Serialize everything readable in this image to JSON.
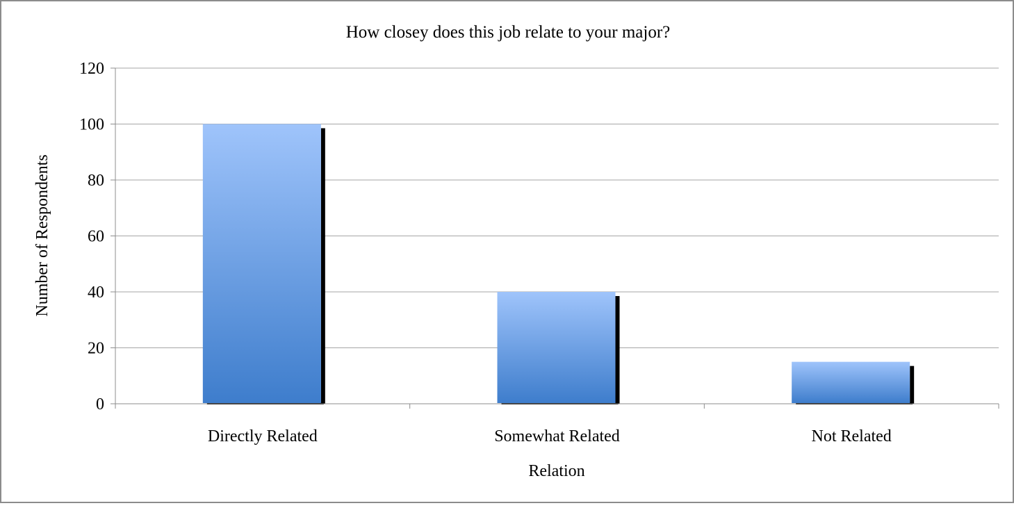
{
  "chart_data": {
    "type": "bar",
    "title": "How closey does this job relate to your major?",
    "xlabel": "Relation",
    "ylabel": "Number of Respondents",
    "categories": [
      "Directly Related",
      "Somewhat Related",
      "Not Related"
    ],
    "values": [
      100,
      40,
      15
    ],
    "ylim": [
      0,
      120
    ],
    "yticks": [
      0,
      20,
      40,
      60,
      80,
      100,
      120
    ],
    "grid": true,
    "legend": "none",
    "colors": {
      "bar_top": "#9fc4fb",
      "bar_bottom": "#3e7dcc",
      "bar_shadow": "#000000",
      "gridline": "#a6a6a6",
      "axis": "#8c8c8c"
    }
  }
}
